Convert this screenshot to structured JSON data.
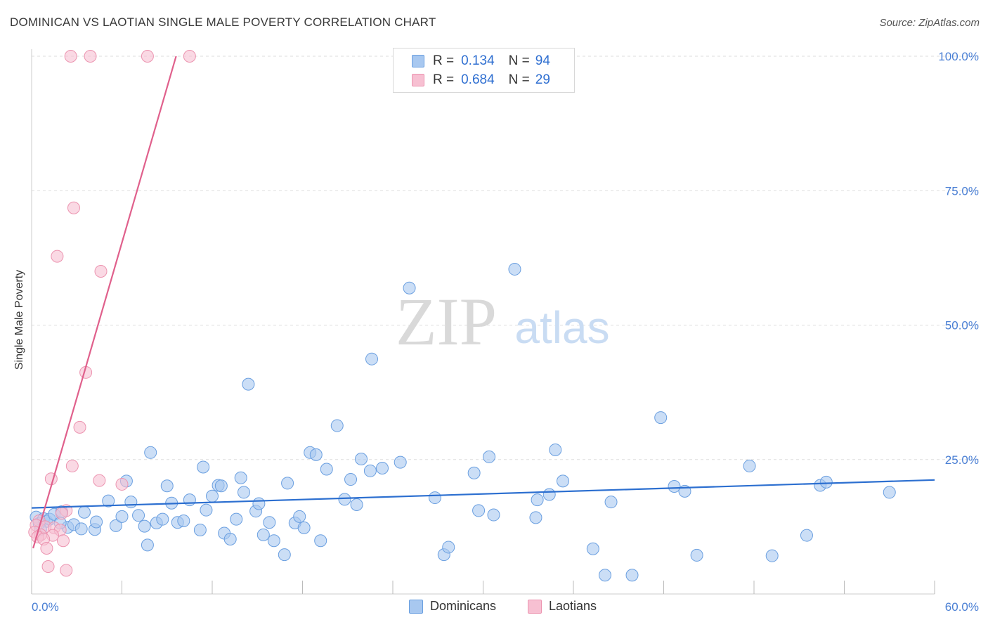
{
  "header": {
    "title": "DOMINICAN VS LAOTIAN SINGLE MALE POVERTY CORRELATION CHART",
    "source": "Source: ZipAtlas.com"
  },
  "watermark": {
    "zip": "ZIP",
    "atlas": "atlas"
  },
  "legend": {
    "rows": [
      {
        "r_label": "R =",
        "r_value": "0.134",
        "n_label": "N =",
        "n_value": "94"
      },
      {
        "r_label": "R =",
        "r_value": "0.684",
        "n_label": "N =",
        "n_value": "29"
      }
    ]
  },
  "bottom_legend": {
    "dominicans": "Dominicans",
    "laotians": "Laotians"
  },
  "colors": {
    "dominican_fill": "#a8c8f0",
    "dominican_stroke": "#6a9fe0",
    "dominican_line": "#2c6fd0",
    "laotian_fill": "#f7c0d2",
    "laotian_stroke": "#ec94b0",
    "laotian_line": "#e0608c",
    "tick_text": "#4a7fd4",
    "grid": "#dddddd"
  },
  "chart_data": {
    "type": "scatter",
    "title": "DOMINICAN VS LAOTIAN SINGLE MALE POVERTY CORRELATION CHART",
    "xlabel": "",
    "ylabel": "Single Male Poverty",
    "xlim": [
      0,
      60
    ],
    "ylim": [
      0,
      102
    ],
    "x_tick_labels": [
      "0.0%",
      "60.0%"
    ],
    "y_ticks": [
      25,
      50,
      75,
      100
    ],
    "y_tick_labels": [
      "25.0%",
      "50.0%",
      "75.0%",
      "100.0%"
    ],
    "grid": true,
    "series": [
      {
        "name": "Dominicans",
        "R": 0.134,
        "N": 94,
        "trend": {
          "x": [
            0,
            60
          ],
          "y": [
            16.0,
            21.2
          ]
        },
        "points": [
          [
            0.3,
            14.3
          ],
          [
            0.5,
            13.1
          ],
          [
            0.8,
            14.0
          ],
          [
            1.0,
            13.5
          ],
          [
            1.2,
            13.9
          ],
          [
            1.5,
            14.8
          ],
          [
            2.0,
            15.3
          ],
          [
            2.4,
            12.4
          ],
          [
            2.8,
            12.9
          ],
          [
            3.3,
            12.1
          ],
          [
            3.5,
            15.2
          ],
          [
            4.2,
            12.0
          ],
          [
            4.3,
            13.4
          ],
          [
            5.1,
            17.3
          ],
          [
            5.6,
            12.7
          ],
          [
            6.0,
            14.4
          ],
          [
            6.3,
            21.0
          ],
          [
            6.6,
            17.1
          ],
          [
            7.1,
            14.6
          ],
          [
            7.5,
            12.6
          ],
          [
            7.7,
            9.1
          ],
          [
            7.9,
            26.3
          ],
          [
            8.3,
            13.2
          ],
          [
            8.7,
            13.9
          ],
          [
            9.0,
            20.1
          ],
          [
            9.3,
            16.9
          ],
          [
            9.7,
            13.3
          ],
          [
            10.1,
            13.6
          ],
          [
            10.5,
            17.5
          ],
          [
            11.2,
            11.9
          ],
          [
            11.4,
            23.6
          ],
          [
            11.6,
            15.6
          ],
          [
            12.0,
            18.2
          ],
          [
            12.4,
            20.2
          ],
          [
            12.6,
            20.1
          ],
          [
            12.8,
            11.3
          ],
          [
            13.2,
            10.2
          ],
          [
            13.6,
            13.9
          ],
          [
            13.9,
            21.6
          ],
          [
            14.1,
            18.9
          ],
          [
            14.4,
            39.0
          ],
          [
            14.9,
            15.4
          ],
          [
            15.1,
            16.8
          ],
          [
            15.4,
            11.0
          ],
          [
            15.8,
            13.3
          ],
          [
            16.1,
            9.9
          ],
          [
            16.8,
            7.3
          ],
          [
            17.0,
            20.6
          ],
          [
            17.5,
            13.2
          ],
          [
            17.8,
            14.4
          ],
          [
            18.1,
            12.3
          ],
          [
            18.5,
            26.3
          ],
          [
            18.9,
            25.9
          ],
          [
            19.2,
            9.9
          ],
          [
            19.6,
            23.2
          ],
          [
            20.3,
            31.3
          ],
          [
            20.8,
            17.6
          ],
          [
            21.2,
            21.3
          ],
          [
            21.6,
            16.6
          ],
          [
            21.9,
            25.1
          ],
          [
            22.5,
            22.9
          ],
          [
            22.6,
            43.7
          ],
          [
            23.3,
            23.4
          ],
          [
            24.5,
            24.5
          ],
          [
            25.1,
            56.9
          ],
          [
            26.8,
            17.9
          ],
          [
            27.4,
            7.3
          ],
          [
            27.7,
            8.7
          ],
          [
            29.4,
            22.5
          ],
          [
            29.7,
            15.5
          ],
          [
            30.4,
            25.5
          ],
          [
            30.7,
            14.7
          ],
          [
            32.1,
            60.4
          ],
          [
            33.5,
            14.2
          ],
          [
            33.6,
            17.5
          ],
          [
            34.4,
            18.5
          ],
          [
            34.8,
            26.8
          ],
          [
            35.3,
            21.0
          ],
          [
            37.3,
            8.4
          ],
          [
            38.1,
            3.5
          ],
          [
            38.5,
            17.1
          ],
          [
            39.9,
            3.5
          ],
          [
            41.8,
            32.8
          ],
          [
            42.7,
            20.0
          ],
          [
            43.4,
            19.1
          ],
          [
            44.2,
            7.2
          ],
          [
            47.7,
            23.8
          ],
          [
            49.2,
            7.1
          ],
          [
            51.5,
            10.9
          ],
          [
            52.4,
            20.2
          ],
          [
            52.8,
            20.8
          ],
          [
            57.0,
            18.9
          ],
          [
            0.6,
            12.0
          ],
          [
            1.9,
            13.2
          ]
        ]
      },
      {
        "name": "Laotians",
        "R": 0.684,
        "N": 29,
        "trend": {
          "x": [
            0.1,
            9.6
          ],
          "y": [
            8.5,
            100.0
          ]
        },
        "points": [
          [
            2.6,
            100.0
          ],
          [
            3.9,
            100.0
          ],
          [
            7.7,
            100.0
          ],
          [
            10.5,
            100.0
          ],
          [
            2.8,
            71.8
          ],
          [
            1.7,
            62.8
          ],
          [
            4.6,
            60.0
          ],
          [
            3.6,
            41.2
          ],
          [
            3.2,
            31.0
          ],
          [
            2.7,
            23.8
          ],
          [
            1.3,
            21.4
          ],
          [
            4.5,
            21.1
          ],
          [
            6.0,
            20.4
          ],
          [
            2.3,
            15.5
          ],
          [
            2.0,
            15.0
          ],
          [
            0.5,
            13.6
          ],
          [
            0.3,
            12.8
          ],
          [
            0.9,
            12.5
          ],
          [
            1.5,
            12.3
          ],
          [
            1.9,
            11.9
          ],
          [
            0.2,
            11.5
          ],
          [
            0.6,
            11.0
          ],
          [
            1.4,
            10.9
          ],
          [
            0.4,
            10.6
          ],
          [
            0.8,
            10.2
          ],
          [
            2.1,
            9.9
          ],
          [
            1.0,
            8.5
          ],
          [
            1.1,
            5.1
          ],
          [
            2.3,
            4.4
          ]
        ]
      }
    ]
  }
}
